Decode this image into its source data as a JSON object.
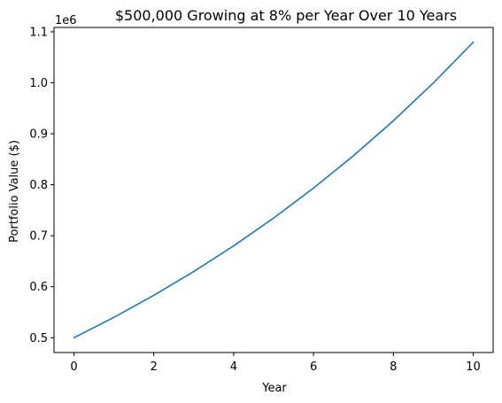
{
  "chart_data": {
    "type": "line",
    "title": "$500,000 Growing at 8% per Year Over 10 Years",
    "xlabel": "Year",
    "ylabel": "Portfolio Value ($)",
    "offset_text": "1e6",
    "xlim": [
      -0.5,
      10.5
    ],
    "ylim": [
      0.471,
      1.1085
    ],
    "x_ticks": [
      0,
      2,
      4,
      6,
      8,
      10
    ],
    "x_tick_labels": [
      "0",
      "2",
      "4",
      "6",
      "8",
      "10"
    ],
    "y_ticks": [
      0.5,
      0.6,
      0.7,
      0.8,
      0.9,
      1.0,
      1.1
    ],
    "y_tick_labels": [
      "0.5",
      "0.6",
      "0.7",
      "0.8",
      "0.9",
      "1.0",
      "1.1"
    ],
    "grid": false,
    "series": [
      {
        "color": "#1f77b4",
        "x": [
          0,
          1,
          2,
          3,
          4,
          5,
          6,
          7,
          8,
          9,
          10
        ],
        "y": [
          0.5,
          0.54,
          0.5832,
          0.629856,
          0.680244,
          0.734664,
          0.793437,
          0.856912,
          0.925465,
          0.999502,
          1.079462
        ]
      }
    ]
  }
}
